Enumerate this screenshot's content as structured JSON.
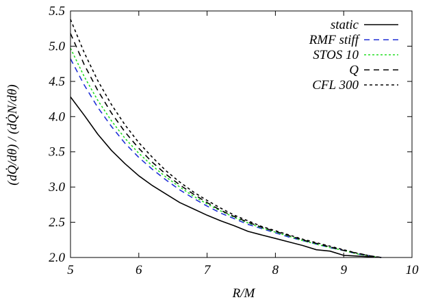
{
  "chart_data": {
    "type": "line",
    "xlabel": "R/M",
    "ylabel": "(dQ̇/dθ) / (dQ̇N/dθ)",
    "xlim": [
      5,
      10
    ],
    "ylim": [
      2.0,
      5.5
    ],
    "x_ticks": [
      "5",
      "6",
      "7",
      "8",
      "9",
      "10"
    ],
    "y_ticks": [
      "2.0",
      "2.5",
      "3.0",
      "3.5",
      "4.0",
      "4.5",
      "5.0",
      "5.5"
    ],
    "legend_position": "top-right",
    "series": [
      {
        "name": "static",
        "color": "#000000",
        "dash": "solid",
        "x": [
          5.0,
          5.2,
          5.4,
          5.6,
          5.8,
          6.0,
          6.2,
          6.4,
          6.6,
          6.8,
          7.0,
          7.2,
          7.4,
          7.6,
          7.8,
          8.0,
          8.2,
          8.4,
          8.6,
          8.8,
          9.0,
          9.2,
          9.4,
          9.55
        ],
        "y": [
          4.28,
          4.02,
          3.75,
          3.52,
          3.33,
          3.16,
          3.02,
          2.9,
          2.78,
          2.69,
          2.6,
          2.52,
          2.45,
          2.37,
          2.32,
          2.27,
          2.22,
          2.17,
          2.11,
          2.09,
          2.03,
          2.02,
          2.01,
          2.0
        ]
      },
      {
        "name": "RMF stiff",
        "color": "#1f2fd6",
        "dash": "8,6",
        "x": [
          5.0,
          5.2,
          5.4,
          5.6,
          5.8,
          6.0,
          6.2,
          6.4,
          6.6,
          6.8,
          7.0,
          7.2,
          7.4,
          7.6,
          7.8,
          8.0,
          8.2,
          8.4,
          8.6,
          8.8,
          9.0,
          9.2,
          9.4,
          9.55
        ],
        "y": [
          4.82,
          4.45,
          4.13,
          3.86,
          3.62,
          3.42,
          3.25,
          3.1,
          2.96,
          2.84,
          2.73,
          2.63,
          2.55,
          2.47,
          2.41,
          2.35,
          2.29,
          2.24,
          2.19,
          2.14,
          2.1,
          2.05,
          2.02,
          2.0
        ]
      },
      {
        "name": "STOS 10",
        "color": "#22dd22",
        "dash": "3,3",
        "x": [
          5.0,
          5.2,
          5.4,
          5.6,
          5.8,
          6.0,
          6.2,
          6.4,
          6.6,
          6.8,
          7.0,
          7.2,
          7.4,
          7.6,
          7.8,
          8.0,
          8.2,
          8.4,
          8.6,
          8.8,
          9.0,
          9.2,
          9.4,
          9.55
        ],
        "y": [
          4.97,
          4.57,
          4.23,
          3.94,
          3.69,
          3.48,
          3.3,
          3.14,
          3.0,
          2.87,
          2.76,
          2.66,
          2.57,
          2.49,
          2.42,
          2.36,
          2.3,
          2.24,
          2.19,
          2.14,
          2.1,
          2.05,
          2.02,
          2.0
        ]
      },
      {
        "name": "Q",
        "color": "#000000",
        "dash": "8,6",
        "x": [
          5.0,
          5.2,
          5.4,
          5.6,
          5.8,
          6.0,
          6.2,
          6.4,
          6.6,
          6.8,
          7.0,
          7.2,
          7.4,
          7.6,
          7.8,
          8.0,
          8.2,
          8.4,
          8.6,
          8.8,
          9.0,
          9.2,
          9.4,
          9.55
        ],
        "y": [
          5.18,
          4.74,
          4.37,
          4.05,
          3.78,
          3.55,
          3.35,
          3.18,
          3.03,
          2.9,
          2.78,
          2.67,
          2.58,
          2.5,
          2.43,
          2.37,
          2.31,
          2.25,
          2.2,
          2.15,
          2.1,
          2.06,
          2.02,
          2.0
        ]
      },
      {
        "name": "CFL 300",
        "color": "#000000",
        "dash": "4,4",
        "x": [
          5.0,
          5.2,
          5.4,
          5.6,
          5.8,
          6.0,
          6.2,
          6.4,
          6.6,
          6.8,
          7.0,
          7.2,
          7.4,
          7.6,
          7.8,
          8.0,
          8.2,
          8.4,
          8.6,
          8.8,
          9.0,
          9.2,
          9.4,
          9.55
        ],
        "y": [
          5.38,
          4.91,
          4.51,
          4.17,
          3.88,
          3.63,
          3.42,
          3.23,
          3.07,
          2.93,
          2.81,
          2.7,
          2.6,
          2.52,
          2.44,
          2.38,
          2.32,
          2.26,
          2.21,
          2.16,
          2.11,
          2.06,
          2.02,
          2.0
        ]
      }
    ]
  }
}
